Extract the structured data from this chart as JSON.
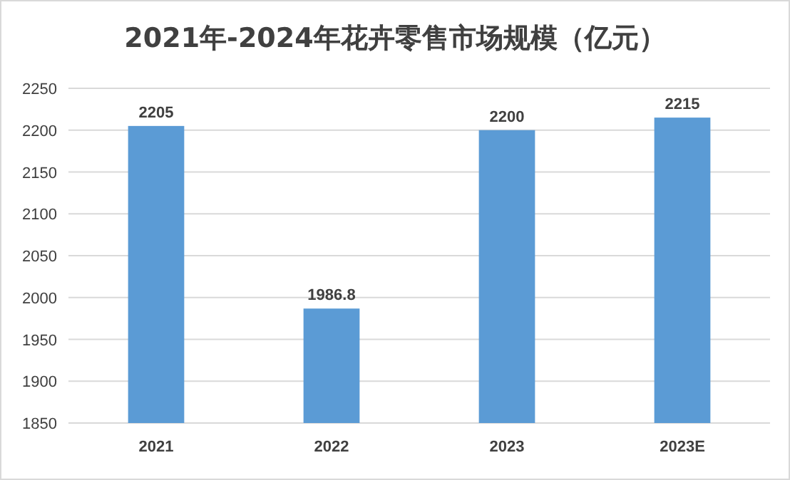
{
  "chart_data": {
    "type": "bar",
    "title": "2021年-2024年花卉零售市场规模（亿元）",
    "categories": [
      "2021",
      "2022",
      "2023",
      "2023E"
    ],
    "values": [
      2205,
      1986.8,
      2200,
      2215
    ],
    "color": "#5b9bd5",
    "ylim": [
      1850,
      2250
    ],
    "yticks": [
      1850,
      1900,
      1950,
      2000,
      2050,
      2100,
      2150,
      2200,
      2250
    ],
    "grid": "y",
    "data_labels": true
  }
}
